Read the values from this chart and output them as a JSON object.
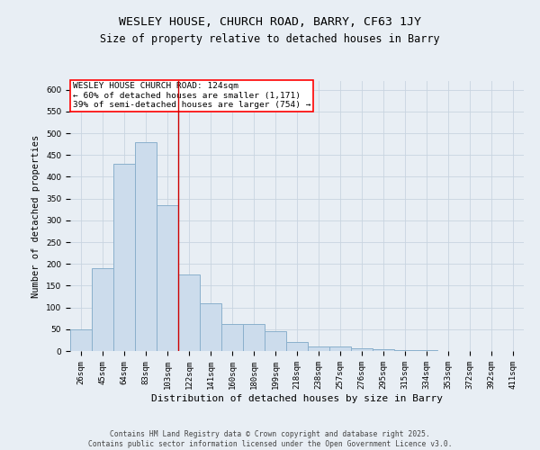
{
  "title1": "WESLEY HOUSE, CHURCH ROAD, BARRY, CF63 1JY",
  "title2": "Size of property relative to detached houses in Barry",
  "xlabel": "Distribution of detached houses by size in Barry",
  "ylabel": "Number of detached properties",
  "categories": [
    "26sqm",
    "45sqm",
    "64sqm",
    "83sqm",
    "103sqm",
    "122sqm",
    "141sqm",
    "160sqm",
    "180sqm",
    "199sqm",
    "218sqm",
    "238sqm",
    "257sqm",
    "276sqm",
    "295sqm",
    "315sqm",
    "334sqm",
    "353sqm",
    "372sqm",
    "392sqm",
    "411sqm"
  ],
  "values": [
    50,
    190,
    430,
    480,
    335,
    175,
    110,
    62,
    62,
    45,
    20,
    10,
    10,
    7,
    5,
    3,
    2,
    1,
    1,
    1,
    0
  ],
  "bar_color": "#ccdcec",
  "bar_edge_color": "#8ab0cc",
  "bar_linewidth": 0.7,
  "grid_color": "#c8d4e0",
  "bg_color": "#e8eef4",
  "vline_color": "#cc0000",
  "vline_linewidth": 1.0,
  "vline_x": 4.5,
  "annotation_box_text": "WESLEY HOUSE CHURCH ROAD: 124sqm\n← 60% of detached houses are smaller (1,171)\n39% of semi-detached houses are larger (754) →",
  "annotation_fontsize": 6.8,
  "title_fontsize": 9.5,
  "subtitle_fontsize": 8.5,
  "xlabel_fontsize": 8.0,
  "ylabel_fontsize": 7.5,
  "tick_fontsize": 6.5,
  "ylim": [
    0,
    620
  ],
  "yticks": [
    0,
    50,
    100,
    150,
    200,
    250,
    300,
    350,
    400,
    450,
    500,
    550,
    600
  ],
  "footer_text": "Contains HM Land Registry data © Crown copyright and database right 2025.\nContains public sector information licensed under the Open Government Licence v3.0.",
  "footer_fontsize": 5.8
}
